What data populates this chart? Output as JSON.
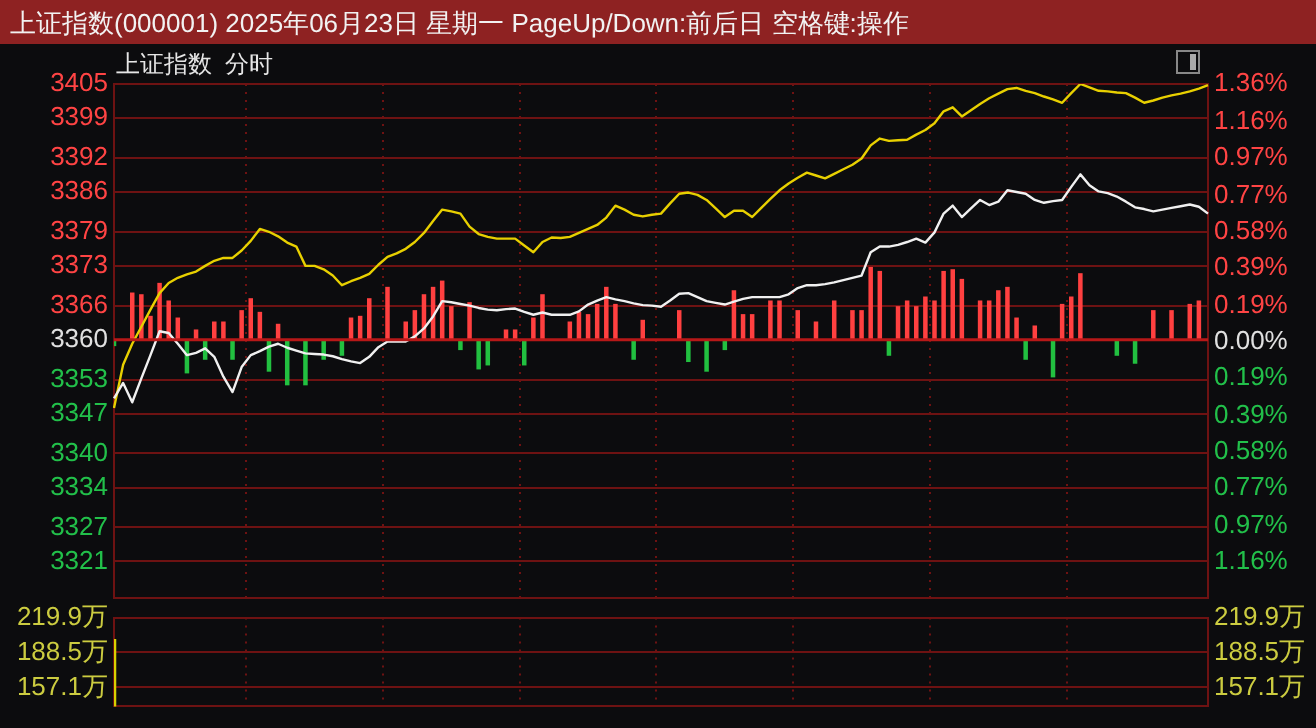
{
  "chart_data": [
    {
      "type": "line",
      "title": "上证指数(000001) 2025年06月23日 星期一 PageUp/Down:前后日 空格键:操作",
      "subtitle": "上证指数  分时",
      "categories": [
        null,
        null,
        null,
        null,
        null,
        null,
        null,
        null,
        null,
        null,
        null,
        null,
        null,
        null,
        null,
        null,
        null,
        null,
        null,
        null,
        null,
        null,
        null,
        null,
        null,
        null,
        null,
        null,
        null,
        null,
        null,
        null,
        null,
        null,
        null,
        null,
        null,
        null,
        null,
        null,
        null,
        null,
        null,
        null,
        null,
        null,
        null,
        null,
        null,
        null,
        null,
        null,
        null,
        null,
        null,
        null,
        null,
        null,
        null,
        null,
        null,
        null,
        null,
        null,
        null,
        null,
        null,
        null,
        null,
        null,
        null,
        null,
        null,
        null,
        null,
        null,
        null,
        null,
        null,
        null,
        null,
        null,
        null,
        null,
        null,
        null,
        null,
        null,
        null,
        null,
        null,
        null,
        null,
        null,
        null,
        null,
        null,
        null,
        null,
        null,
        null,
        null,
        null,
        null,
        null,
        null,
        null,
        null,
        null,
        null,
        null,
        null,
        null,
        null,
        null,
        null,
        null,
        null,
        null,
        null,
        null
      ],
      "ylim": [
        3314.5,
        3405
      ],
      "yticks": [
        3405,
        3399,
        3392,
        3386,
        3379,
        3373,
        3366,
        3360,
        3353,
        3347,
        3340,
        3334,
        3327,
        3321
      ],
      "y2lim": [
        -1.355,
        1.36
      ],
      "y2ticks": [
        {
          "value": 1.36,
          "label": "1.36%"
        },
        {
          "value": 1.16,
          "label": "1.16%"
        },
        {
          "value": 0.97,
          "label": "0.97%"
        },
        {
          "value": 0.77,
          "label": "0.77%"
        },
        {
          "value": 0.58,
          "label": "0.58%"
        },
        {
          "value": 0.39,
          "label": "0.39%"
        },
        {
          "value": 0.19,
          "label": "0.19%"
        },
        {
          "value": 0,
          "label": "0.00%"
        },
        {
          "value": -0.19,
          "label": "0.19%"
        },
        {
          "value": -0.39,
          "label": "0.39%"
        },
        {
          "value": -0.58,
          "label": "0.58%"
        },
        {
          "value": -0.77,
          "label": "0.77%"
        },
        {
          "value": -0.97,
          "label": "0.97%"
        },
        {
          "value": -1.16,
          "label": "1.16%"
        }
      ],
      "grid": true,
      "ref_lines": [
        {
          "axis": "y",
          "value": 3360,
          "color": "#b81818"
        }
      ],
      "series": [
        {
          "type": "bar",
          "values": [
            -1.0,
            null,
            8.2,
            7.9,
            4.1,
            9.9,
            6.8,
            3.8,
            -5.8,
            1.7,
            -3.4,
            3.1,
            3.1,
            -3.4,
            5.1,
            7.2,
            4.8,
            -5.5,
            2.7,
            -7.9,
            null,
            -7.9,
            null,
            -3.4,
            null,
            -2.7,
            3.8,
            4.1,
            7.2,
            null,
            9.2,
            null,
            3.1,
            5.1,
            7.9,
            9.2,
            10.3,
            5.8,
            -1.7,
            6.5,
            -5.1,
            -4.4,
            null,
            1.7,
            1.7,
            -4.4,
            3.8,
            7.9,
            null,
            null,
            3.1,
            4.8,
            4.4,
            6.2,
            9.2,
            6.2,
            null,
            -3.4,
            3.4,
            null,
            null,
            null,
            5.1,
            -3.8,
            null,
            -5.5,
            null,
            -1.7,
            8.6,
            4.4,
            4.4,
            null,
            6.8,
            6.8,
            null,
            5.1,
            null,
            3.1,
            null,
            6.8,
            null,
            5.1,
            5.1,
            12.7,
            12.0,
            -2.7,
            5.8,
            6.8,
            5.8,
            7.5,
            6.8,
            12.0,
            12.3,
            10.6,
            null,
            6.8,
            6.8,
            8.6,
            9.2,
            3.8,
            -3.4,
            2.4,
            null,
            -6.5,
            6.2,
            7.5,
            11.6,
            null,
            null,
            null,
            -2.7,
            null,
            -4.1,
            null,
            5.1,
            null,
            5.1,
            null,
            6.2,
            6.8,
            null
          ],
          "colors": [
            "#22c040",
            null,
            "#ff4040",
            "#ff4040",
            "#ff4040",
            "#ff4040",
            "#ff4040",
            "#ff4040",
            "#22c040",
            "#ff4040",
            "#22c040",
            "#ff4040",
            "#ff4040",
            "#22c040",
            "#ff4040",
            "#ff4040",
            "#ff4040",
            "#22c040",
            "#ff4040",
            "#22c040",
            null,
            "#22c040",
            null,
            "#22c040",
            null,
            "#22c040",
            "#ff4040",
            "#ff4040",
            "#ff4040",
            null,
            "#ff4040",
            null,
            "#ff4040",
            "#ff4040",
            "#ff4040",
            "#ff4040",
            "#ff4040",
            "#ff4040",
            "#22c040",
            "#ff4040",
            "#22c040",
            "#22c040",
            null,
            "#ff4040",
            "#ff4040",
            "#22c040",
            "#ff4040",
            "#ff4040",
            null,
            null,
            "#ff4040",
            "#ff4040",
            "#ff4040",
            "#ff4040",
            "#ff4040",
            "#ff4040",
            null,
            "#22c040",
            "#ff4040",
            null,
            null,
            null,
            "#ff4040",
            "#22c040",
            null,
            "#22c040",
            null,
            "#22c040",
            "#ff4040",
            "#ff4040",
            "#ff4040",
            null,
            "#ff4040",
            "#ff4040",
            null,
            "#ff4040",
            null,
            "#ff4040",
            null,
            "#ff4040",
            null,
            "#ff4040",
            "#ff4040",
            "#ff4040",
            "#ff4040",
            "#22c040",
            "#ff4040",
            "#ff4040",
            "#ff4040",
            "#ff4040",
            "#ff4040",
            "#ff4040",
            "#ff4040",
            "#ff4040",
            null,
            "#ff4040",
            "#ff4040",
            "#ff4040",
            "#ff4040",
            "#ff4040",
            "#22c040",
            "#ff4040",
            null,
            "#22c040",
            "#ff4040",
            "#ff4040",
            "#ff4040",
            null,
            null,
            null,
            "#22c040",
            null,
            "#22c040",
            null,
            "#ff4040",
            null,
            "#ff4040",
            null,
            "#ff4040",
            "#ff4040",
            null
          ],
          "base": [
            3360,
            null,
            3360,
            3360,
            3360,
            3360,
            3360,
            3360,
            3360,
            3360,
            3360,
            3360,
            3360,
            3360,
            3360,
            3360,
            3360,
            3360,
            3360,
            3360,
            null,
            3360,
            null,
            3360,
            null,
            3360,
            3360,
            3360,
            3360,
            null,
            3360,
            null,
            3360,
            3360,
            3360,
            3360,
            3360,
            3360,
            3360,
            3360,
            3360,
            3360,
            null,
            3360,
            3360,
            3360,
            3360,
            3360,
            null,
            null,
            3360,
            3360,
            3360,
            3360,
            3360,
            3360,
            null,
            3360,
            3360,
            null,
            null,
            null,
            3360,
            3360,
            null,
            3360,
            null,
            3360,
            3360,
            3360,
            3360,
            null,
            3360,
            3360,
            null,
            3360,
            null,
            3360,
            null,
            3360,
            null,
            3360,
            3360,
            3360,
            3360,
            3360,
            3360,
            3360,
            3360,
            3360,
            3360,
            3360,
            3360,
            3360,
            null,
            3360,
            3360,
            3360,
            3360,
            3360,
            3360,
            3360,
            null,
            3360,
            3360,
            3360,
            3360,
            null,
            null,
            null,
            3360,
            null,
            3360,
            null,
            3360,
            null,
            3360,
            null,
            3360,
            3360,
            null
          ]
        },
        {
          "type": "line",
          "color": "#f0f0f0",
          "values": [
            3349.7,
            3352.4,
            3349.0,
            3353.2,
            3357.3,
            3361.5,
            3361.2,
            3359.3,
            3357.3,
            3357.7,
            3358.5,
            3357.0,
            3353.5,
            3350.8,
            3355.2,
            3357.3,
            3358.0,
            3358.8,
            3359.3,
            3358.6,
            3358.1,
            3357.6,
            3357.5,
            3357.4,
            3357.1,
            3356.6,
            3356.2,
            3355.9,
            3357.0,
            3358.7,
            3359.7,
            3359.7,
            3359.7,
            3360.6,
            3362.0,
            3364.1,
            3366.8,
            3366.6,
            3366.3,
            3366.0,
            3365.6,
            3365.3,
            3365.2,
            3365.4,
            3365.5,
            3364.9,
            3364.4,
            3364.8,
            3364.4,
            3364.4,
            3364.4,
            3365.0,
            3366.2,
            3366.9,
            3367.5,
            3367.1,
            3366.8,
            3366.4,
            3366.1,
            3366.0,
            3365.8,
            3366.9,
            3368.1,
            3368.2,
            3367.5,
            3366.8,
            3366.5,
            3366.2,
            3366.7,
            3367.2,
            3367.5,
            3367.5,
            3367.5,
            3367.5,
            3368.0,
            3369.1,
            3369.6,
            3369.6,
            3369.8,
            3370.1,
            3370.5,
            3370.9,
            3371.3,
            3375.4,
            3376.4,
            3376.4,
            3376.7,
            3377.2,
            3377.8,
            3377.1,
            3378.9,
            3382.2,
            3383.6,
            3381.6,
            3383.1,
            3384.6,
            3383.7,
            3384.3,
            3386.3,
            3386.0,
            3385.7,
            3384.6,
            3384.1,
            3384.4,
            3384.6,
            3386.9,
            3389.1,
            3387.2,
            3386.1,
            3385.8,
            3385.2,
            3384.3,
            3383.3,
            3383.0,
            3382.6,
            3382.9,
            3383.2,
            3383.5,
            3383.8,
            3383.4,
            3382.2
          ]
        },
        {
          "type": "line",
          "color": "#e8d000",
          "values": [
            3348.0,
            3355.6,
            3359.3,
            3362.3,
            3365.3,
            3368.2,
            3370.0,
            3370.9,
            3371.5,
            3372.0,
            3373.0,
            3373.9,
            3374.4,
            3374.4,
            3375.7,
            3377.4,
            3379.5,
            3379.0,
            3378.2,
            3377.1,
            3376.4,
            3373.0,
            3373.0,
            3372.4,
            3371.3,
            3369.6,
            3370.3,
            3370.9,
            3371.6,
            3373.2,
            3374.6,
            3375.2,
            3376.0,
            3377.2,
            3378.8,
            3380.9,
            3382.9,
            3382.6,
            3382.2,
            3379.9,
            3378.6,
            3378.1,
            3377.8,
            3377.8,
            3377.8,
            3376.6,
            3375.4,
            3377.2,
            3378.0,
            3377.9,
            3378.1,
            3378.8,
            3379.5,
            3380.2,
            3381.5,
            3383.6,
            3382.9,
            3382.0,
            3381.7,
            3382.0,
            3382.2,
            3384.0,
            3385.7,
            3385.9,
            3385.5,
            3384.6,
            3383.1,
            3381.6,
            3382.7,
            3382.7,
            3381.6,
            3383.2,
            3384.8,
            3386.3,
            3387.5,
            3388.5,
            3389.4,
            3388.9,
            3388.4,
            3389.2,
            3390.0,
            3390.8,
            3391.9,
            3394.2,
            3395.4,
            3395.0,
            3395.1,
            3395.2,
            3396.1,
            3396.9,
            3398.1,
            3400.2,
            3400.9,
            3399.3,
            3400.4,
            3401.5,
            3402.5,
            3403.3,
            3404.1,
            3404.3,
            3403.8,
            3403.4,
            3402.8,
            3402.3,
            3401.7,
            3403.4,
            3405.0,
            3404.4,
            3403.8,
            3403.7,
            3403.5,
            3403.4,
            3402.6,
            3401.7,
            3402.1,
            3402.6,
            3403.0,
            3403.3,
            3403.7,
            3404.2,
            3404.8
          ]
        }
      ]
    },
    {
      "type": "bar",
      "color": "#d8d000",
      "categories": [
        null,
        null,
        null,
        null,
        null,
        null,
        null,
        null,
        null,
        null,
        null,
        null,
        null,
        null,
        null,
        null,
        null,
        null,
        null,
        null,
        null,
        null,
        null,
        null,
        null,
        null,
        null,
        null,
        null,
        null,
        null,
        null,
        null,
        null,
        null,
        null,
        null,
        null,
        null,
        null,
        null,
        null,
        null,
        null,
        null,
        null,
        null,
        null,
        null,
        null,
        null,
        null,
        null,
        null,
        null,
        null,
        null,
        null,
        null,
        null,
        null,
        null,
        null,
        null,
        null,
        null,
        null,
        null,
        null,
        null,
        null,
        null,
        null,
        null,
        null,
        null,
        null,
        null,
        null,
        null,
        null,
        null,
        null,
        null,
        null,
        null,
        null,
        null,
        null,
        null,
        null,
        null,
        null,
        null,
        null,
        null,
        null,
        null,
        null,
        null,
        null,
        null,
        null,
        null,
        null,
        null,
        null,
        null,
        null,
        null,
        null,
        null,
        null,
        null,
        null,
        null,
        null,
        null,
        null,
        null,
        null
      ],
      "values": [
        200,
        null,
        null,
        null,
        null,
        null,
        null,
        null,
        null,
        null,
        null,
        null,
        null,
        null,
        null,
        null,
        null,
        null,
        null,
        null,
        null,
        null,
        null,
        null,
        null,
        null,
        null,
        null,
        null,
        null,
        null,
        null,
        null,
        null,
        null,
        null,
        null,
        null,
        null,
        null,
        null,
        null,
        null,
        null,
        null,
        null,
        null,
        null,
        null,
        null,
        null,
        null,
        null,
        null,
        null,
        null,
        null,
        null,
        null,
        null,
        null,
        null,
        null,
        null,
        null,
        null,
        null,
        null,
        null,
        null,
        null,
        null,
        null,
        null,
        null,
        null,
        null,
        null,
        null,
        null,
        null,
        null,
        null,
        null,
        null,
        null,
        null,
        null,
        null,
        null,
        null,
        null,
        null,
        null,
        null,
        null,
        null,
        null,
        null,
        null,
        null,
        null,
        null,
        null,
        null,
        null,
        null,
        null,
        null,
        null,
        null,
        null,
        null,
        null,
        null,
        null,
        null,
        null,
        null,
        null,
        null
      ],
      "ylim": [
        140,
        219.9
      ],
      "yticks": [
        {
          "value": 219.9,
          "label": "219.9万"
        },
        {
          "value": 188.5,
          "label": "188.5万"
        },
        {
          "value": 157.1,
          "label": "157.1万"
        }
      ],
      "y2lim": [
        140,
        219.9
      ],
      "y2ticks": [
        {
          "value": 219.9,
          "label": "219.9万"
        },
        {
          "value": 188.5,
          "label": "188.5万"
        },
        {
          "value": 157.1,
          "label": "157.1万"
        }
      ],
      "grid": true
    }
  ]
}
